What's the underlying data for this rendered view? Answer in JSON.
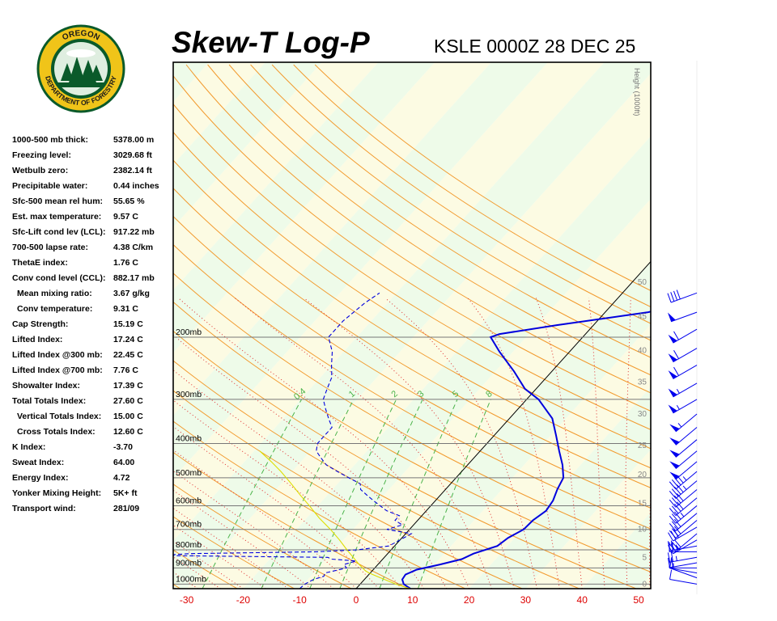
{
  "header": {
    "title": "Skew-T Log-P",
    "subtitle": "KSLE 0000Z 28 DEC 25"
  },
  "logo": {
    "top_text": "OREGON",
    "bottom_text": "DEPARTMENT OF FORESTRY",
    "colors": {
      "ring": "#f0c419",
      "inner": "#0a5a2a",
      "text": "#1a1a1a"
    }
  },
  "indices": [
    {
      "label": "1000-500 mb thick:",
      "value": "5378.00 m",
      "indent": false
    },
    {
      "label": "Freezing level:",
      "value": "3029.68 ft",
      "indent": false
    },
    {
      "label": "Wetbulb zero:",
      "value": "2382.14 ft",
      "indent": false
    },
    {
      "label": "Precipitable water:",
      "value": "0.44 inches",
      "indent": false
    },
    {
      "label": "Sfc-500 mean rel hum:",
      "value": "55.65 %",
      "indent": false
    },
    {
      "label": "Est. max temperature:",
      "value": "9.57 C",
      "indent": false
    },
    {
      "label": "Sfc-Lift cond lev (LCL):",
      "value": "917.22 mb",
      "indent": false
    },
    {
      "label": "700-500 lapse rate:",
      "value": "4.38 C/km",
      "indent": false
    },
    {
      "label": "ThetaE index:",
      "value": "1.76 C",
      "indent": false
    },
    {
      "label": "Conv cond level (CCL):",
      "value": "882.17 mb",
      "indent": false
    },
    {
      "label": "Mean mixing ratio:",
      "value": "3.67 g/kg",
      "indent": true
    },
    {
      "label": "Conv temperature:",
      "value": "9.31 C",
      "indent": true
    },
    {
      "label": "Cap Strength:",
      "value": "15.19 C",
      "indent": false
    },
    {
      "label": "Lifted Index:",
      "value": "17.24 C",
      "indent": false
    },
    {
      "label": "Lifted Index @300 mb:",
      "value": "22.45 C",
      "indent": false
    },
    {
      "label": "Lifted Index @700 mb:",
      "value": "7.76 C",
      "indent": false
    },
    {
      "label": "Showalter Index:",
      "value": "17.39 C",
      "indent": false
    },
    {
      "label": "Total Totals Index:",
      "value": "27.60 C",
      "indent": false
    },
    {
      "label": "Vertical Totals Index:",
      "value": "15.00 C",
      "indent": true
    },
    {
      "label": "Cross Totals Index:",
      "value": "12.60 C",
      "indent": true
    },
    {
      "label": "K Index:",
      "value": "-3.70",
      "indent": false
    },
    {
      "label": "Sweat Index:",
      "value": "64.00",
      "indent": false
    },
    {
      "label": "Energy Index:",
      "value": "4.72",
      "indent": false
    },
    {
      "label": "Yonker Mixing Height:",
      "value": "5K+ ft",
      "indent": false
    },
    {
      "label": "Transport wind:",
      "value": "281/09",
      "indent": false
    }
  ],
  "chart_data": {
    "type": "line",
    "chart_kind": "skew-t log-p",
    "x_ticks": [
      -30,
      -20,
      -10,
      0,
      10,
      20,
      30,
      40,
      50
    ],
    "pressure_levels": [
      {
        "p": 200,
        "label": "200mb"
      },
      {
        "p": 300,
        "label": "300mb"
      },
      {
        "p": 400,
        "label": "400mb"
      },
      {
        "p": 500,
        "label": "500mb"
      },
      {
        "p": 600,
        "label": "600mb"
      },
      {
        "p": 700,
        "label": "700mb"
      },
      {
        "p": 800,
        "label": "800mb"
      },
      {
        "p": 900,
        "label": "900mb"
      },
      {
        "p": 1000,
        "label": "1000mb"
      }
    ],
    "height_axis": {
      "label": "Height (1000ft)",
      "ticks": [
        {
          "p": 1000,
          "value": "0"
        },
        {
          "p": 840,
          "value": "5"
        },
        {
          "p": 700,
          "value": "10"
        },
        {
          "p": 590,
          "value": "15"
        },
        {
          "p": 490,
          "value": "20"
        },
        {
          "p": 405,
          "value": "25"
        },
        {
          "p": 330,
          "value": "30"
        },
        {
          "p": 268,
          "value": "35"
        },
        {
          "p": 218,
          "value": "40"
        },
        {
          "p": 175,
          "value": "45"
        },
        {
          "p": 140,
          "value": "50"
        }
      ]
    },
    "mixing_ratio_labels": [
      "0.4",
      "1",
      "2",
      "3",
      "5",
      "8"
    ],
    "series": [
      {
        "name": "Temperature",
        "color": "#0000dd",
        "style": "solid",
        "points": [
          [
            1030,
            9.6
          ],
          [
            1000,
            7.7
          ],
          [
            970,
            6.7
          ],
          [
            940,
            6.5
          ],
          [
            910,
            7.7
          ],
          [
            880,
            11.0
          ],
          [
            850,
            14.0
          ],
          [
            820,
            15.2
          ],
          [
            780,
            18.2
          ],
          [
            740,
            18.8
          ],
          [
            700,
            20.2
          ],
          [
            660,
            20.4
          ],
          [
            620,
            21.2
          ],
          [
            580,
            20.8
          ],
          [
            540,
            19.8
          ],
          [
            500,
            19.0
          ],
          [
            460,
            16.8
          ],
          [
            420,
            14.0
          ],
          [
            380,
            11.0
          ],
          [
            340,
            7.6
          ],
          [
            300,
            2.1
          ],
          [
            280,
            -2.0
          ],
          [
            250,
            -6.7
          ],
          [
            220,
            -12.4
          ],
          [
            200,
            -16.3
          ],
          [
            196,
            -15.2
          ],
          [
            185,
            -6.5
          ],
          [
            170,
            7.6
          ],
          [
            158,
            14.8
          ],
          [
            150,
            14.7
          ]
        ]
      },
      {
        "name": "Dewpoint",
        "color": "#0000dd",
        "style": "dashed",
        "points": [
          [
            1030,
            -10.0
          ],
          [
            1000,
            -9.8
          ],
          [
            970,
            -9.0
          ],
          [
            950,
            -7.7
          ],
          [
            930,
            -8.0
          ],
          [
            900,
            -5.0
          ],
          [
            880,
            -6.0
          ],
          [
            860,
            -4.4
          ],
          [
            850,
            -9.0
          ],
          [
            840,
            -10.0
          ],
          [
            830,
            -40.0
          ],
          [
            820,
            -35.0
          ],
          [
            810,
            -13.0
          ],
          [
            800,
            -6.0
          ],
          [
            780,
            -1.0
          ],
          [
            750,
            0.0
          ],
          [
            720,
            1.0
          ],
          [
            700,
            -4.0
          ],
          [
            680,
            -2.0
          ],
          [
            660,
            -4.0
          ],
          [
            640,
            -4.0
          ],
          [
            620,
            -7.0
          ],
          [
            600,
            -9.0
          ],
          [
            580,
            -11.0
          ],
          [
            560,
            -13.0
          ],
          [
            540,
            -15.0
          ],
          [
            520,
            -16.0
          ],
          [
            500,
            -19.0
          ],
          [
            480,
            -22.0
          ],
          [
            460,
            -25.0
          ],
          [
            440,
            -27.0
          ],
          [
            420,
            -29.0
          ],
          [
            400,
            -30.0
          ],
          [
            380,
            -30.0
          ],
          [
            360,
            -30.0
          ],
          [
            340,
            -32.0
          ],
          [
            320,
            -34.0
          ],
          [
            300,
            -36.0
          ],
          [
            280,
            -37.0
          ],
          [
            260,
            -38.0
          ],
          [
            240,
            -40.0
          ],
          [
            220,
            -42.0
          ],
          [
            200,
            -45.0
          ],
          [
            180,
            -45.0
          ],
          [
            160,
            -44.0
          ],
          [
            150,
            -43.0
          ]
        ]
      },
      {
        "name": "Parcel",
        "color": "#dddd00",
        "style": "solid",
        "points": [
          [
            1030,
            9.6
          ],
          [
            1000,
            6.3
          ],
          [
            960,
            2.6
          ],
          [
            930,
            -0.2
          ],
          [
            917,
            -1.2
          ],
          [
            880,
            -3.3
          ],
          [
            840,
            -5.5
          ],
          [
            800,
            -7.8
          ],
          [
            750,
            -10.7
          ],
          [
            700,
            -14.0
          ],
          [
            650,
            -17.8
          ],
          [
            600,
            -21.5
          ],
          [
            560,
            -24.8
          ],
          [
            520,
            -28.2
          ],
          [
            480,
            -32.0
          ],
          [
            450,
            -35.3
          ],
          [
            420,
            -39.0
          ]
        ]
      }
    ],
    "wind_barbs": [
      {
        "p": 1000,
        "dir": 280,
        "spd": 10
      },
      {
        "p": 960,
        "dir": 290,
        "spd": 5
      },
      {
        "p": 930,
        "dir": 280,
        "spd": 10
      },
      {
        "p": 900,
        "dir": 270,
        "spd": 15
      },
      {
        "p": 870,
        "dir": 260,
        "spd": 20
      },
      {
        "p": 840,
        "dir": 260,
        "spd": 25
      },
      {
        "p": 810,
        "dir": 270,
        "spd": 20
      },
      {
        "p": 780,
        "dir": 260,
        "spd": 25
      },
      {
        "p": 750,
        "dir": 240,
        "spd": 25
      },
      {
        "p": 720,
        "dir": 230,
        "spd": 30
      },
      {
        "p": 690,
        "dir": 240,
        "spd": 30
      },
      {
        "p": 660,
        "dir": 230,
        "spd": 30
      },
      {
        "p": 630,
        "dir": 230,
        "spd": 30
      },
      {
        "p": 600,
        "dir": 230,
        "spd": 35
      },
      {
        "p": 570,
        "dir": 230,
        "spd": 40
      },
      {
        "p": 540,
        "dir": 230,
        "spd": 40
      },
      {
        "p": 510,
        "dir": 230,
        "spd": 45
      },
      {
        "p": 480,
        "dir": 230,
        "spd": 45
      },
      {
        "p": 450,
        "dir": 230,
        "spd": 50
      },
      {
        "p": 420,
        "dir": 230,
        "spd": 50
      },
      {
        "p": 390,
        "dir": 230,
        "spd": 50
      },
      {
        "p": 360,
        "dir": 230,
        "spd": 50
      },
      {
        "p": 330,
        "dir": 230,
        "spd": 55
      },
      {
        "p": 300,
        "dir": 240,
        "spd": 55
      },
      {
        "p": 270,
        "dir": 240,
        "spd": 55
      },
      {
        "p": 240,
        "dir": 240,
        "spd": 60
      },
      {
        "p": 215,
        "dir": 240,
        "spd": 60
      },
      {
        "p": 190,
        "dir": 240,
        "spd": 60
      },
      {
        "p": 170,
        "dir": 250,
        "spd": 50
      },
      {
        "p": 150,
        "dir": 250,
        "spd": 40
      }
    ]
  }
}
